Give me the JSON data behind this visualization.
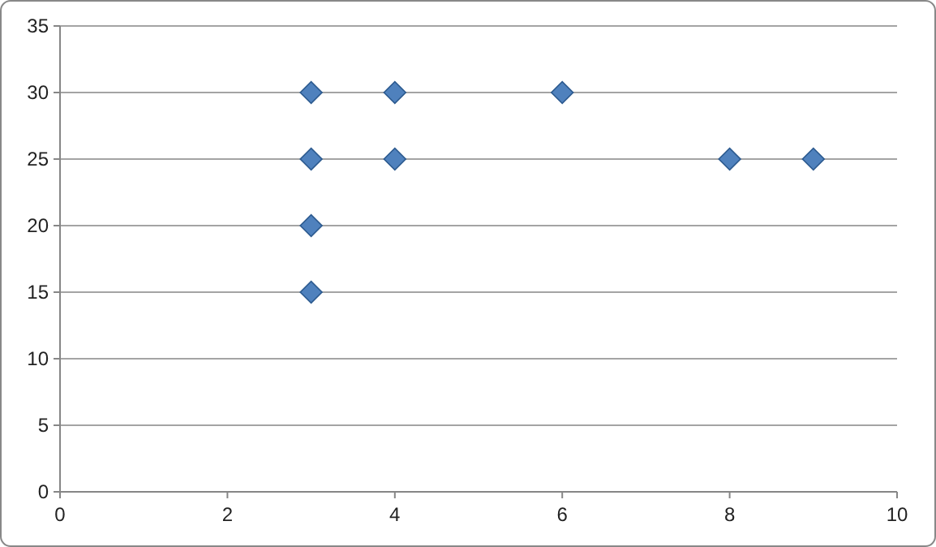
{
  "chart_data": {
    "type": "scatter",
    "x": [
      3,
      4,
      6,
      3,
      4,
      8,
      9,
      3,
      3
    ],
    "values": [
      30,
      30,
      30,
      25,
      25,
      25,
      25,
      20,
      15
    ],
    "color": "#4f81bd",
    "marker": "diamond",
    "grid": "y",
    "xlim": [
      0,
      10
    ],
    "xticks": [
      0,
      2,
      4,
      6,
      8,
      10
    ],
    "ylim": [
      0,
      35
    ],
    "yticks": [
      0,
      5,
      10,
      15,
      20,
      25,
      30,
      35
    ]
  }
}
